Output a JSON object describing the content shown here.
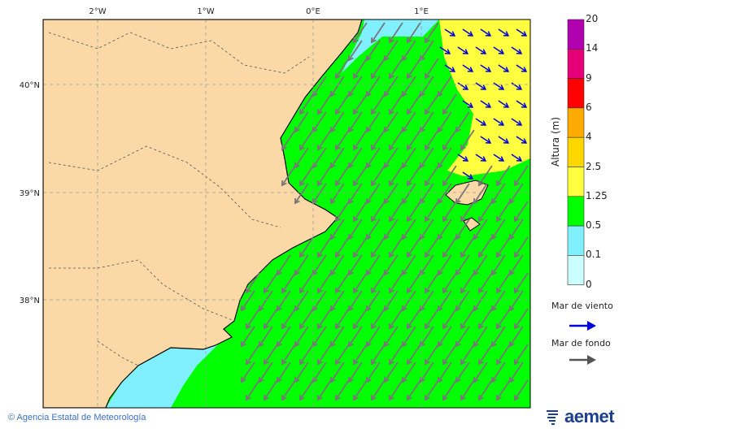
{
  "map": {
    "lon_ticks": [
      "2°W",
      "1°W",
      "0°E",
      "1°E"
    ],
    "lat_ticks": [
      "40°N",
      "39°N",
      "38°N"
    ],
    "colors": {
      "land": "#fad9a6",
      "sea_green": "#00ff00",
      "yellow": "#ffff40",
      "cyan": "#80f0ff",
      "swell_arrow": "#777777",
      "wind_arrow": "#0000dd"
    }
  },
  "colorbar": {
    "title": "Altura (m)",
    "ticks": [
      "20",
      "14",
      "9",
      "6",
      "4",
      "2.5",
      "1.25",
      "0.5",
      "0.1",
      "0"
    ],
    "colors": [
      "#b000b0",
      "#e5007a",
      "#ff0000",
      "#ffaa00",
      "#ffd700",
      "#ffff40",
      "#00ff00",
      "#80f0ff",
      "#ccffff"
    ]
  },
  "legend": {
    "wind_sea": "Mar de viento",
    "swell": "Mar de fondo"
  },
  "footer": {
    "copyright": "© Agencia Estatal de Meteorología",
    "logo": "aemet"
  }
}
